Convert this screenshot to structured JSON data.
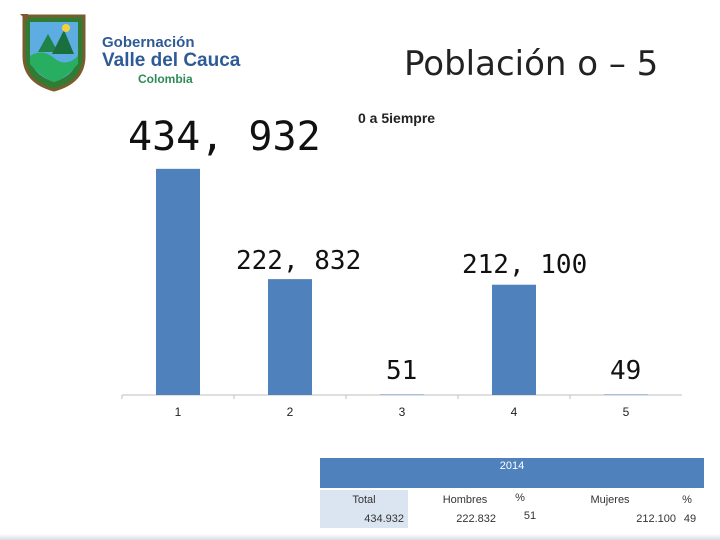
{
  "logo": {
    "line1": "Gobernación",
    "line2": "Valle del Cauca",
    "line3": "Colombia"
  },
  "slide_title": "Población o – 5",
  "chart_data": {
    "type": "bar",
    "series": [
      {
        "name": "0 a 5iempre",
        "values": [
          434932,
          222832,
          51,
          212100,
          49
        ]
      }
    ],
    "categories": [
      "1",
      "2",
      "3",
      "4",
      "5"
    ],
    "data_labels": [
      "434, 932",
      "222, 832",
      "51",
      "212, 100",
      "49"
    ],
    "ylim": [
      0,
      500000
    ],
    "grid": false,
    "colors": {
      "bar": "#4f81bd",
      "axis": "#bfbfbf"
    }
  },
  "table": {
    "year": "2014",
    "headers": {
      "total": "Total",
      "hombres": "Hombres",
      "pct_hombres": "%",
      "mujeres": "Mujeres",
      "pct_mujeres": "%"
    },
    "values": {
      "total": "434.932",
      "hombres": "222.832",
      "pct_hombres": "51",
      "mujeres": "212.100",
      "pct_mujeres": "49"
    },
    "colors": {
      "header_bg": "#4f81bd",
      "total_bg": "#dbe5f1"
    }
  }
}
